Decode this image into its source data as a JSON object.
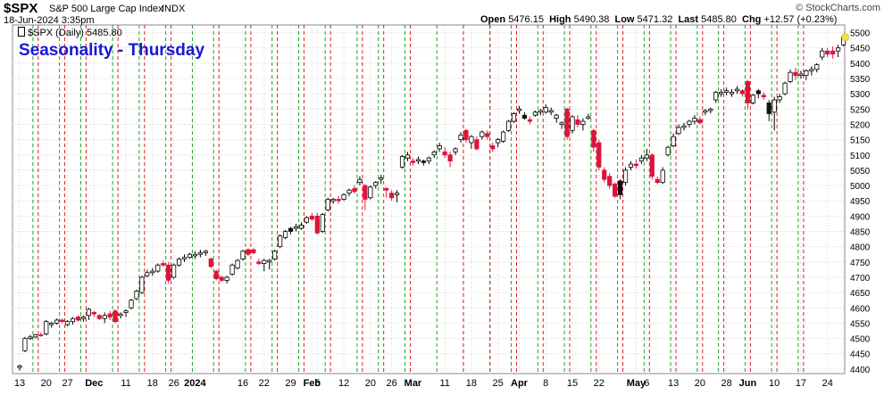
{
  "header": {
    "symbol": "$SPX",
    "name": "S&P 500 Large Cap Index",
    "exchange": "INDX",
    "date_time": "18-Jun-2024 3:35pm",
    "open_label": "Open",
    "open": "5476.15",
    "high_label": "High",
    "high": "5490.38",
    "low_label": "Low",
    "low": "5471.32",
    "last_label": "Last",
    "last": "5485.80",
    "chg_label": "Chg",
    "chg": "+12.57 (+0.23%)",
    "watermark": "© StockCharts.com"
  },
  "legend": {
    "text": "$SPX (Daily) 5485.80"
  },
  "annotation": {
    "title": "Seasonality - Thursday"
  },
  "colors": {
    "up_fill": "#ffffff",
    "down_fill": "#dc143c",
    "candle_outline": "#000000",
    "green_line": "#22a022",
    "red_line": "#d82020",
    "title_blue": "#1818d8",
    "grid": "#d6d6d6",
    "highlight": "#f4e04c"
  },
  "chart_data": {
    "type": "candlestick",
    "title": "Seasonality - Thursday",
    "series_name": "$SPX (Daily)",
    "ylim": [
      4385,
      5525
    ],
    "yticks": [
      4400,
      4450,
      4500,
      4550,
      4600,
      4650,
      4700,
      4750,
      4800,
      4850,
      4900,
      4950,
      5000,
      5050,
      5100,
      5150,
      5200,
      5250,
      5300,
      5350,
      5400,
      5450,
      5500
    ],
    "xticks": [
      {
        "label": "13",
        "index": 0
      },
      {
        "label": "20",
        "index": 5
      },
      {
        "label": "27",
        "index": 9
      },
      {
        "label": "Dec",
        "index": 14
      },
      {
        "label": "11",
        "index": 20
      },
      {
        "label": "18",
        "index": 25
      },
      {
        "label": "26",
        "index": 29
      },
      {
        "label": "2024",
        "index": 33
      },
      {
        "label": "16",
        "index": 42
      },
      {
        "label": "22",
        "index": 46
      },
      {
        "label": "29",
        "index": 51
      },
      {
        "label": "Feb",
        "index": 55
      },
      {
        "label": "5",
        "index": 56
      },
      {
        "label": "12",
        "index": 61
      },
      {
        "label": "20",
        "index": 66
      },
      {
        "label": "26",
        "index": 70
      },
      {
        "label": "Mar",
        "index": 74
      },
      {
        "label": "11",
        "index": 80
      },
      {
        "label": "18",
        "index": 85
      },
      {
        "label": "25",
        "index": 90
      },
      {
        "label": "Apr",
        "index": 94
      },
      {
        "label": "8",
        "index": 99
      },
      {
        "label": "15",
        "index": 104
      },
      {
        "label": "22",
        "index": 109
      },
      {
        "label": "May",
        "index": 116
      },
      {
        "label": "6",
        "index": 118
      },
      {
        "label": "13",
        "index": 123
      },
      {
        "label": "20",
        "index": 128
      },
      {
        "label": "28",
        "index": 133
      },
      {
        "label": "Jun",
        "index": 137
      },
      {
        "label": "10",
        "index": 142
      },
      {
        "label": "17",
        "index": 147
      },
      {
        "label": "24",
        "index": 152
      }
    ],
    "green_line_indices": [
      3,
      8,
      12,
      18,
      23,
      28,
      33,
      37,
      43,
      48,
      53,
      58,
      64,
      68,
      73,
      79,
      84,
      89,
      93,
      98,
      103,
      108,
      113,
      118,
      123,
      128,
      132,
      137,
      142,
      147
    ],
    "red_line_indices": [
      4,
      9,
      13,
      19,
      24,
      29,
      38,
      44,
      49,
      54,
      59,
      65,
      69,
      74,
      84,
      89,
      94,
      99,
      104,
      109,
      114,
      119,
      124,
      129,
      133,
      138,
      143,
      148
    ],
    "candles": [
      {
        "o": 4405,
        "h": 4415,
        "l": 4395,
        "c": 4410
      },
      {
        "o": 4460,
        "h": 4505,
        "l": 4455,
        "c": 4500
      },
      {
        "o": 4500,
        "h": 4512,
        "l": 4495,
        "c": 4505
      },
      {
        "o": 4505,
        "h": 4515,
        "l": 4500,
        "c": 4512
      },
      {
        "o": 4512,
        "h": 4520,
        "l": 4505,
        "c": 4510
      },
      {
        "o": 4515,
        "h": 4560,
        "l": 4510,
        "c": 4555
      },
      {
        "o": 4545,
        "h": 4555,
        "l": 4535,
        "c": 4550
      },
      {
        "o": 4550,
        "h": 4565,
        "l": 4545,
        "c": 4560
      },
      {
        "o": 4560,
        "h": 4565,
        "l": 4550,
        "c": 4555
      },
      {
        "o": 4545,
        "h": 4560,
        "l": 4540,
        "c": 4555
      },
      {
        "o": 4555,
        "h": 4570,
        "l": 4545,
        "c": 4565
      },
      {
        "o": 4570,
        "h": 4575,
        "l": 4555,
        "c": 4560
      },
      {
        "o": 4565,
        "h": 4575,
        "l": 4555,
        "c": 4570
      },
      {
        "o": 4575,
        "h": 4600,
        "l": 4560,
        "c": 4595
      },
      {
        "o": 4585,
        "h": 4590,
        "l": 4570,
        "c": 4580
      },
      {
        "o": 4575,
        "h": 4580,
        "l": 4560,
        "c": 4565
      },
      {
        "o": 4565,
        "h": 4585,
        "l": 4550,
        "c": 4575
      },
      {
        "o": 4580,
        "h": 4590,
        "l": 4560,
        "c": 4570
      },
      {
        "o": 4590,
        "h": 4595,
        "l": 4550,
        "c": 4555
      },
      {
        "o": 4575,
        "h": 4585,
        "l": 4565,
        "c": 4580
      },
      {
        "o": 4585,
        "h": 4595,
        "l": 4570,
        "c": 4590
      },
      {
        "o": 4600,
        "h": 4630,
        "l": 4595,
        "c": 4625
      },
      {
        "o": 4630,
        "h": 4660,
        "l": 4625,
        "c": 4655
      },
      {
        "o": 4650,
        "h": 4705,
        "l": 4645,
        "c": 4700
      },
      {
        "o": 4705,
        "h": 4725,
        "l": 4700,
        "c": 4715
      },
      {
        "o": 4715,
        "h": 4730,
        "l": 4705,
        "c": 4720
      },
      {
        "o": 4720,
        "h": 4745,
        "l": 4715,
        "c": 4740
      },
      {
        "o": 4745,
        "h": 4755,
        "l": 4735,
        "c": 4740
      },
      {
        "o": 4740,
        "h": 4750,
        "l": 4680,
        "c": 4690
      },
      {
        "o": 4700,
        "h": 4745,
        "l": 4695,
        "c": 4740
      },
      {
        "o": 4740,
        "h": 4765,
        "l": 4735,
        "c": 4760
      },
      {
        "o": 4760,
        "h": 4775,
        "l": 4750,
        "c": 4765
      },
      {
        "o": 4765,
        "h": 4780,
        "l": 4760,
        "c": 4775
      },
      {
        "o": 4770,
        "h": 4785,
        "l": 4760,
        "c": 4775
      },
      {
        "o": 4775,
        "h": 4790,
        "l": 4765,
        "c": 4780
      },
      {
        "o": 4780,
        "h": 4790,
        "l": 4770,
        "c": 4785
      },
      {
        "o": 4760,
        "h": 4765,
        "l": 4730,
        "c": 4735
      },
      {
        "o": 4720,
        "h": 4725,
        "l": 4690,
        "c": 4695
      },
      {
        "o": 4700,
        "h": 4705,
        "l": 4685,
        "c": 4690
      },
      {
        "o": 4690,
        "h": 4705,
        "l": 4680,
        "c": 4700
      },
      {
        "o": 4710,
        "h": 4745,
        "l": 4705,
        "c": 4740
      },
      {
        "o": 4730,
        "h": 4760,
        "l": 4725,
        "c": 4755
      },
      {
        "o": 4760,
        "h": 4790,
        "l": 4755,
        "c": 4785
      },
      {
        "o": 4790,
        "h": 4795,
        "l": 4770,
        "c": 4775
      },
      {
        "o": 4790,
        "h": 4795,
        "l": 4775,
        "c": 4780
      },
      {
        "o": 4750,
        "h": 4760,
        "l": 4740,
        "c": 4745
      },
      {
        "o": 4745,
        "h": 4760,
        "l": 4720,
        "c": 4755
      },
      {
        "o": 4750,
        "h": 4760,
        "l": 4725,
        "c": 4755
      },
      {
        "o": 4760,
        "h": 4790,
        "l": 4755,
        "c": 4785
      },
      {
        "o": 4800,
        "h": 4840,
        "l": 4795,
        "c": 4835
      },
      {
        "o": 4830,
        "h": 4855,
        "l": 4825,
        "c": 4850
      },
      {
        "o": 4850,
        "h": 4865,
        "l": 4840,
        "c": 4860
      },
      {
        "o": 4860,
        "h": 4875,
        "l": 4850,
        "c": 4865
      },
      {
        "o": 4860,
        "h": 4880,
        "l": 4855,
        "c": 4870
      },
      {
        "o": 4880,
        "h": 4900,
        "l": 4875,
        "c": 4895
      },
      {
        "o": 4900,
        "h": 4910,
        "l": 4885,
        "c": 4890
      },
      {
        "o": 4900,
        "h": 4910,
        "l": 4840,
        "c": 4845
      },
      {
        "o": 4850,
        "h": 4910,
        "l": 4845,
        "c": 4905
      },
      {
        "o": 4920,
        "h": 4960,
        "l": 4915,
        "c": 4955
      },
      {
        "o": 4950,
        "h": 4960,
        "l": 4940,
        "c": 4955
      },
      {
        "o": 4955,
        "h": 4965,
        "l": 4940,
        "c": 4950
      },
      {
        "o": 4955,
        "h": 4975,
        "l": 4950,
        "c": 4970
      },
      {
        "o": 4975,
        "h": 4990,
        "l": 4965,
        "c": 4985
      },
      {
        "o": 4990,
        "h": 5000,
        "l": 4975,
        "c": 4980
      },
      {
        "o": 5010,
        "h": 5030,
        "l": 5000,
        "c": 5020
      },
      {
        "o": 5000,
        "h": 5005,
        "l": 4920,
        "c": 4955
      },
      {
        "o": 4960,
        "h": 5000,
        "l": 4955,
        "c": 4995
      },
      {
        "o": 5000,
        "h": 5015,
        "l": 4990,
        "c": 5010
      },
      {
        "o": 5020,
        "h": 5035,
        "l": 5005,
        "c": 5025
      },
      {
        "o": 4990,
        "h": 4995,
        "l": 4960,
        "c": 4985
      },
      {
        "o": 4975,
        "h": 4985,
        "l": 4950,
        "c": 4960
      },
      {
        "o": 4970,
        "h": 4985,
        "l": 4945,
        "c": 4975
      },
      {
        "o": 5060,
        "h": 5100,
        "l": 5055,
        "c": 5095
      },
      {
        "o": 5090,
        "h": 5110,
        "l": 5080,
        "c": 5100
      },
      {
        "o": 5080,
        "h": 5090,
        "l": 5065,
        "c": 5075
      },
      {
        "o": 5080,
        "h": 5095,
        "l": 5070,
        "c": 5085
      },
      {
        "o": 5075,
        "h": 5085,
        "l": 5065,
        "c": 5080
      },
      {
        "o": 5080,
        "h": 5095,
        "l": 5070,
        "c": 5090
      },
      {
        "o": 5100,
        "h": 5115,
        "l": 5090,
        "c": 5110
      },
      {
        "o": 5120,
        "h": 5140,
        "l": 5110,
        "c": 5130
      },
      {
        "o": 5110,
        "h": 5125,
        "l": 5090,
        "c": 5100
      },
      {
        "o": 5100,
        "h": 5110,
        "l": 5060,
        "c": 5080
      },
      {
        "o": 5110,
        "h": 5125,
        "l": 5100,
        "c": 5120
      },
      {
        "o": 5150,
        "h": 5175,
        "l": 5140,
        "c": 5165
      },
      {
        "o": 5180,
        "h": 5185,
        "l": 5140,
        "c": 5150
      },
      {
        "o": 5140,
        "h": 5165,
        "l": 5120,
        "c": 5160
      },
      {
        "o": 5150,
        "h": 5160,
        "l": 5115,
        "c": 5120
      },
      {
        "o": 5160,
        "h": 5180,
        "l": 5150,
        "c": 5175
      },
      {
        "o": 5170,
        "h": 5180,
        "l": 5150,
        "c": 5160
      },
      {
        "o": 5130,
        "h": 5140,
        "l": 5110,
        "c": 5120
      },
      {
        "o": 5140,
        "h": 5155,
        "l": 5125,
        "c": 5150
      },
      {
        "o": 5145,
        "h": 5180,
        "l": 5140,
        "c": 5175
      },
      {
        "o": 5180,
        "h": 5215,
        "l": 5175,
        "c": 5210
      },
      {
        "o": 5210,
        "h": 5240,
        "l": 5205,
        "c": 5235
      },
      {
        "o": 5245,
        "h": 5260,
        "l": 5235,
        "c": 5250
      },
      {
        "o": 5230,
        "h": 5240,
        "l": 5215,
        "c": 5220
      },
      {
        "o": 5215,
        "h": 5225,
        "l": 5200,
        "c": 5210
      },
      {
        "o": 5230,
        "h": 5245,
        "l": 5225,
        "c": 5240
      },
      {
        "o": 5240,
        "h": 5250,
        "l": 5230,
        "c": 5245
      },
      {
        "o": 5240,
        "h": 5265,
        "l": 5235,
        "c": 5255
      },
      {
        "o": 5240,
        "h": 5255,
        "l": 5230,
        "c": 5245
      },
      {
        "o": 5220,
        "h": 5235,
        "l": 5205,
        "c": 5230
      },
      {
        "o": 5200,
        "h": 5210,
        "l": 5185,
        "c": 5205
      },
      {
        "o": 5250,
        "h": 5255,
        "l": 5150,
        "c": 5160
      },
      {
        "o": 5180,
        "h": 5230,
        "l": 5170,
        "c": 5225
      },
      {
        "o": 5215,
        "h": 5230,
        "l": 5190,
        "c": 5200
      },
      {
        "o": 5200,
        "h": 5220,
        "l": 5180,
        "c": 5210
      },
      {
        "o": 5220,
        "h": 5235,
        "l": 5215,
        "c": 5225
      },
      {
        "o": 5180,
        "h": 5185,
        "l": 5110,
        "c": 5125
      },
      {
        "o": 5140,
        "h": 5150,
        "l": 5050,
        "c": 5060
      },
      {
        "o": 5050,
        "h": 5060,
        "l": 5010,
        "c": 5020
      },
      {
        "o": 5030,
        "h": 5040,
        "l": 4990,
        "c": 5000
      },
      {
        "o": 5005,
        "h": 5010,
        "l": 4960,
        "c": 4965
      },
      {
        "o": 4970,
        "h": 5020,
        "l": 4955,
        "c": 5015
      },
      {
        "o": 5010,
        "h": 5060,
        "l": 5000,
        "c": 5050
      },
      {
        "o": 5060,
        "h": 5080,
        "l": 5050,
        "c": 5070
      },
      {
        "o": 5070,
        "h": 5085,
        "l": 5055,
        "c": 5065
      },
      {
        "o": 5080,
        "h": 5100,
        "l": 5070,
        "c": 5090
      },
      {
        "o": 5090,
        "h": 5120,
        "l": 5080,
        "c": 5100
      },
      {
        "o": 5100,
        "h": 5105,
        "l": 5020,
        "c": 5030
      },
      {
        "o": 5020,
        "h": 5030,
        "l": 5005,
        "c": 5010
      },
      {
        "o": 5010,
        "h": 5060,
        "l": 5005,
        "c": 5050
      },
      {
        "o": 5100,
        "h": 5130,
        "l": 5095,
        "c": 5125
      },
      {
        "o": 5130,
        "h": 5170,
        "l": 5125,
        "c": 5160
      },
      {
        "o": 5170,
        "h": 5200,
        "l": 5165,
        "c": 5190
      },
      {
        "o": 5190,
        "h": 5205,
        "l": 5180,
        "c": 5195
      },
      {
        "o": 5200,
        "h": 5215,
        "l": 5190,
        "c": 5210
      },
      {
        "o": 5210,
        "h": 5230,
        "l": 5200,
        "c": 5220
      },
      {
        "o": 5215,
        "h": 5225,
        "l": 5200,
        "c": 5205
      },
      {
        "o": 5240,
        "h": 5250,
        "l": 5230,
        "c": 5245
      },
      {
        "o": 5245,
        "h": 5255,
        "l": 5235,
        "c": 5250
      },
      {
        "o": 5280,
        "h": 5310,
        "l": 5270,
        "c": 5305
      },
      {
        "o": 5300,
        "h": 5315,
        "l": 5290,
        "c": 5305
      },
      {
        "o": 5305,
        "h": 5320,
        "l": 5295,
        "c": 5310
      },
      {
        "o": 5300,
        "h": 5315,
        "l": 5290,
        "c": 5305
      },
      {
        "o": 5310,
        "h": 5325,
        "l": 5300,
        "c": 5315
      },
      {
        "o": 5310,
        "h": 5315,
        "l": 5290,
        "c": 5300
      },
      {
        "o": 5340,
        "h": 5345,
        "l": 5250,
        "c": 5270
      },
      {
        "o": 5270,
        "h": 5300,
        "l": 5265,
        "c": 5295
      },
      {
        "o": 5300,
        "h": 5315,
        "l": 5285,
        "c": 5310
      },
      {
        "o": 5295,
        "h": 5305,
        "l": 5280,
        "c": 5290
      },
      {
        "o": 5270,
        "h": 5280,
        "l": 5210,
        "c": 5235
      },
      {
        "o": 5240,
        "h": 5290,
        "l": 5180,
        "c": 5280
      },
      {
        "o": 5280,
        "h": 5300,
        "l": 5270,
        "c": 5290
      },
      {
        "o": 5300,
        "h": 5340,
        "l": 5295,
        "c": 5335
      },
      {
        "o": 5340,
        "h": 5380,
        "l": 5335,
        "c": 5370
      },
      {
        "o": 5370,
        "h": 5385,
        "l": 5345,
        "c": 5360
      },
      {
        "o": 5360,
        "h": 5375,
        "l": 5350,
        "c": 5365
      },
      {
        "o": 5360,
        "h": 5380,
        "l": 5345,
        "c": 5375
      },
      {
        "o": 5375,
        "h": 5390,
        "l": 5360,
        "c": 5380
      },
      {
        "o": 5380,
        "h": 5400,
        "l": 5370,
        "c": 5395
      },
      {
        "o": 5420,
        "h": 5450,
        "l": 5410,
        "c": 5440
      },
      {
        "o": 5440,
        "h": 5450,
        "l": 5420,
        "c": 5430
      },
      {
        "o": 5440,
        "h": 5455,
        "l": 5415,
        "c": 5430
      },
      {
        "o": 5440,
        "h": 5460,
        "l": 5420,
        "c": 5450
      },
      {
        "o": 5460,
        "h": 5490,
        "l": 5455,
        "c": 5485
      }
    ],
    "black_candle_indices": [
      51,
      76,
      95,
      113,
      139,
      141
    ]
  }
}
